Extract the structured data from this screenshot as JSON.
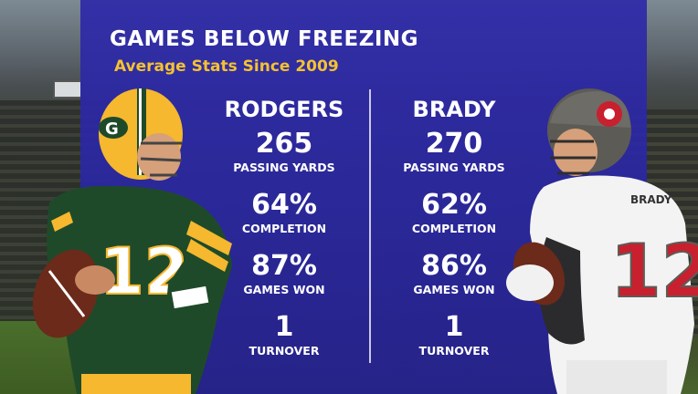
{
  "graphic": {
    "title": "GAMES BELOW FREEZING",
    "subtitle": "Average Stats Since 2009",
    "colors": {
      "panel": "#2a27a0",
      "title": "#ffffff",
      "subtitle": "#f4c232",
      "packers_green": "#1f4a2a",
      "packers_gold": "#f5b82e",
      "bucs_red": "#c8202e",
      "bucs_pewter": "#5d5b56"
    }
  },
  "players": [
    {
      "name": "RODGERS",
      "stats": [
        {
          "value": "265",
          "label": "PASSING YARDS"
        },
        {
          "value": "64%",
          "label": "COMPLETION"
        },
        {
          "value": "87%",
          "label": "GAMES WON"
        },
        {
          "value": "1",
          "label": "TURNOVER"
        }
      ]
    },
    {
      "name": "BRADY",
      "stats": [
        {
          "value": "270",
          "label": "PASSING YARDS"
        },
        {
          "value": "62%",
          "label": "COMPLETION"
        },
        {
          "value": "86%",
          "label": "GAMES WON"
        },
        {
          "value": "1",
          "label": "TURNOVER"
        }
      ]
    }
  ]
}
